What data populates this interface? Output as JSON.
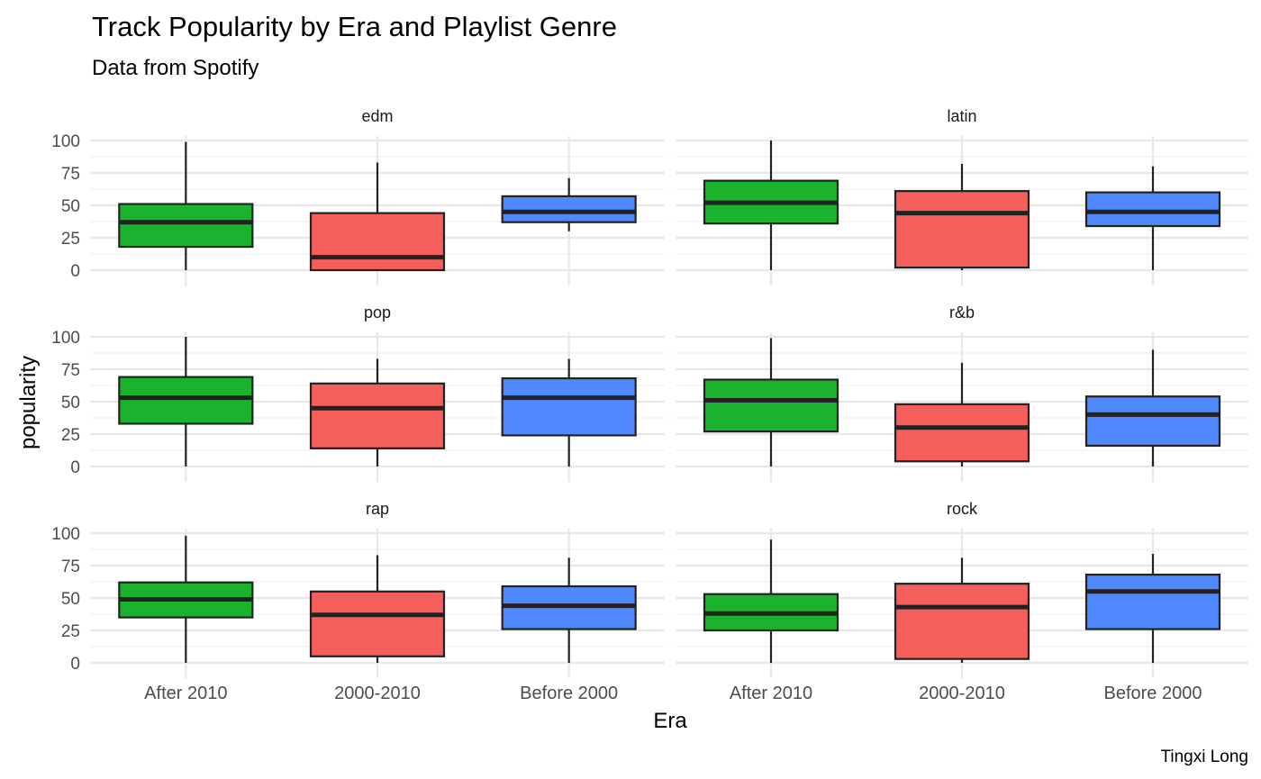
{
  "chart_data": {
    "type": "boxplot",
    "title": "Track Popularity by Era and Playlist Genre",
    "subtitle": "Data from Spotify",
    "xlabel": "Era",
    "ylabel": "popularity",
    "caption": "Tingxi Long",
    "categories": [
      "After 2010",
      "2000-2010",
      "Before 2000"
    ],
    "ylim": [
      0,
      100
    ],
    "yticks": [
      0,
      25,
      50,
      75,
      100
    ],
    "grid": true,
    "legend": "none",
    "colors": {
      "After 2010": "#1bb32e",
      "2000-2010": "#f45f5b",
      "Before 2000": "#4f88ff"
    },
    "facets": [
      {
        "name": "edm",
        "boxes": [
          {
            "era": "After 2010",
            "min": 0,
            "q1": 18,
            "median": 37,
            "q3": 51,
            "max": 99
          },
          {
            "era": "2000-2010",
            "min": 0,
            "q1": 0,
            "median": 10,
            "q3": 44,
            "max": 83
          },
          {
            "era": "Before 2000",
            "min": 30,
            "q1": 37,
            "median": 45,
            "q3": 57,
            "max": 71
          }
        ]
      },
      {
        "name": "latin",
        "boxes": [
          {
            "era": "After 2010",
            "min": 0,
            "q1": 36,
            "median": 52,
            "q3": 69,
            "max": 100
          },
          {
            "era": "2000-2010",
            "min": 0,
            "q1": 2,
            "median": 44,
            "q3": 61,
            "max": 82
          },
          {
            "era": "Before 2000",
            "min": 0,
            "q1": 34,
            "median": 45,
            "q3": 60,
            "max": 80
          }
        ]
      },
      {
        "name": "pop",
        "boxes": [
          {
            "era": "After 2010",
            "min": 0,
            "q1": 33,
            "median": 53,
            "q3": 69,
            "max": 100
          },
          {
            "era": "2000-2010",
            "min": 0,
            "q1": 14,
            "median": 45,
            "q3": 64,
            "max": 83
          },
          {
            "era": "Before 2000",
            "min": 0,
            "q1": 24,
            "median": 53,
            "q3": 68,
            "max": 83
          }
        ]
      },
      {
        "name": "r&b",
        "boxes": [
          {
            "era": "After 2010",
            "min": 0,
            "q1": 27,
            "median": 51,
            "q3": 67,
            "max": 99
          },
          {
            "era": "2000-2010",
            "min": 0,
            "q1": 4,
            "median": 30,
            "q3": 48,
            "max": 80
          },
          {
            "era": "Before 2000",
            "min": 0,
            "q1": 16,
            "median": 40,
            "q3": 54,
            "max": 90
          }
        ]
      },
      {
        "name": "rap",
        "boxes": [
          {
            "era": "After 2010",
            "min": 0,
            "q1": 35,
            "median": 49,
            "q3": 62,
            "max": 98
          },
          {
            "era": "2000-2010",
            "min": 0,
            "q1": 5,
            "median": 37,
            "q3": 55,
            "max": 83
          },
          {
            "era": "Before 2000",
            "min": 0,
            "q1": 26,
            "median": 44,
            "q3": 59,
            "max": 81
          }
        ]
      },
      {
        "name": "rock",
        "boxes": [
          {
            "era": "After 2010",
            "min": 0,
            "q1": 25,
            "median": 38,
            "q3": 53,
            "max": 95
          },
          {
            "era": "2000-2010",
            "min": 0,
            "q1": 3,
            "median": 43,
            "q3": 61,
            "max": 81
          },
          {
            "era": "Before 2000",
            "min": 0,
            "q1": 26,
            "median": 55,
            "q3": 68,
            "max": 84
          }
        ]
      }
    ]
  }
}
